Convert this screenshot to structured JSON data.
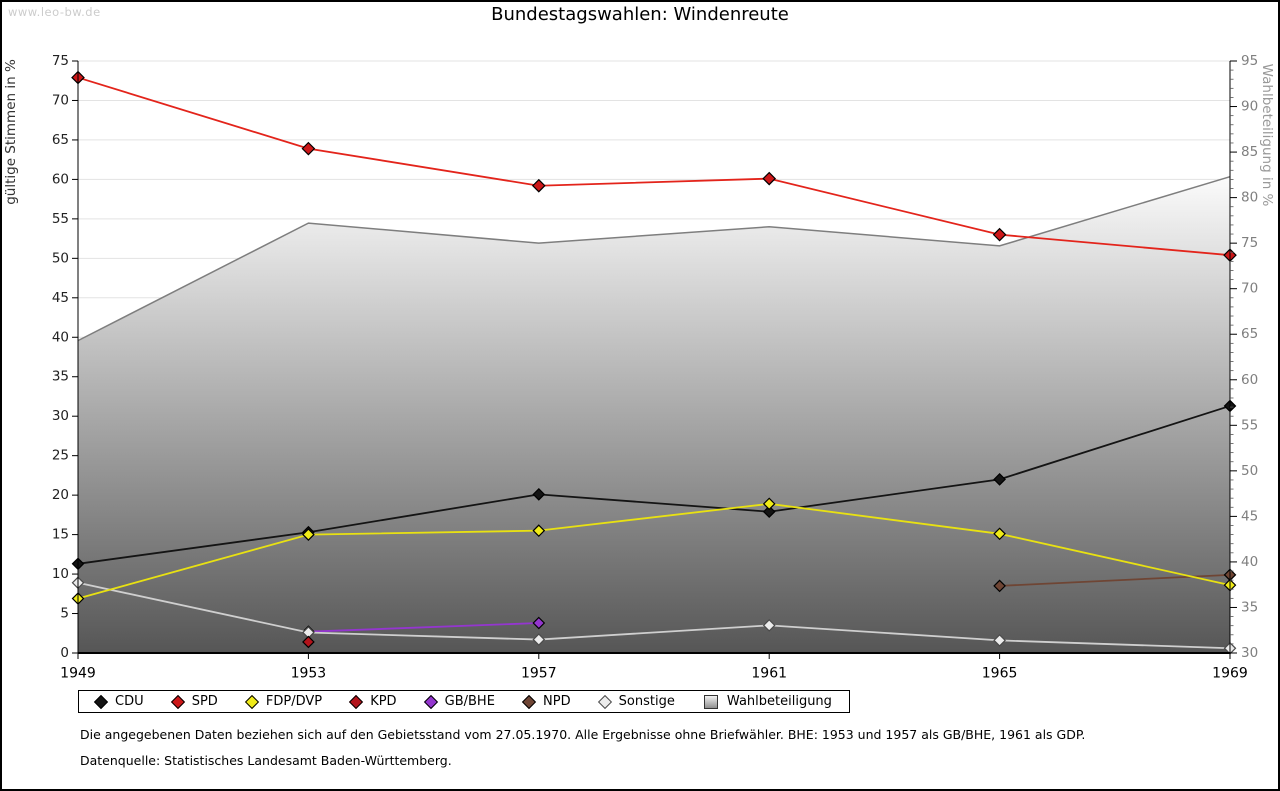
{
  "watermark": "www.leo-bw.de",
  "title": "Bundestagswahlen: Windenreute",
  "chart_data": {
    "type": "line",
    "title": "Bundestagswahlen: Windenreute",
    "x_categories": [
      "1949",
      "1953",
      "1957",
      "1961",
      "1965",
      "1969"
    ],
    "ylabel_left": "gültige Stimmen in %",
    "ylabel_right": "Wahlbeteiligung in %",
    "ylim_left": [
      0,
      75
    ],
    "ylim_right": [
      30,
      95
    ],
    "ytick_step": 5,
    "grid": true,
    "legend_position": "bottom",
    "series": [
      {
        "name": "CDU",
        "axis": "left",
        "color": "#141414",
        "marker_fill": "#141414",
        "marker_stroke": "#000000",
        "values": [
          11.3,
          15.3,
          20.1,
          17.9,
          22.0,
          31.3
        ]
      },
      {
        "name": "SPD",
        "axis": "left",
        "color": "#e3241b",
        "marker_fill": "#cd1719",
        "marker_stroke": "#000000",
        "values": [
          72.9,
          63.9,
          59.2,
          60.1,
          53.0,
          50.4
        ]
      },
      {
        "name": "FDP/DVP",
        "axis": "left",
        "color": "#e8e112",
        "marker_fill": "#f0eb18",
        "marker_stroke": "#000000",
        "values": [
          6.9,
          15.0,
          15.5,
          18.9,
          15.1,
          8.6
        ]
      },
      {
        "name": "KPD",
        "axis": "left",
        "color": "#b3131b",
        "marker_fill": "#b3131b",
        "marker_stroke": "#000000",
        "values": [
          null,
          1.4,
          null,
          null,
          null,
          null
        ]
      },
      {
        "name": "GB/BHE",
        "axis": "left",
        "color": "#9436cf",
        "marker_fill": "#9436cf",
        "marker_stroke": "#000000",
        "values": [
          null,
          2.7,
          3.8,
          null,
          null,
          null
        ]
      },
      {
        "name": "NPD",
        "axis": "left",
        "color": "#6f4534",
        "marker_fill": "#6f4534",
        "marker_stroke": "#000000",
        "values": [
          null,
          null,
          null,
          null,
          8.5,
          9.9
        ]
      },
      {
        "name": "Sonstige",
        "axis": "left",
        "color": "#cfcfcf",
        "marker_fill": "#ececec",
        "marker_stroke": "#4a4a4a",
        "values": [
          8.9,
          2.6,
          1.7,
          3.5,
          1.6,
          0.6
        ]
      }
    ],
    "area_series": {
      "name": "Wahlbeteiligung",
      "axis": "right",
      "stroke": "#7e7e7e",
      "fill_top": "#fbfbfb",
      "fill_bottom": "#565656",
      "values": [
        64.3,
        77.2,
        75.0,
        76.8,
        74.7,
        82.3
      ]
    }
  },
  "footnotes": {
    "line1": "Die angegebenen Daten beziehen sich auf den Gebietsstand vom 27.05.1970. Alle Ergebnisse ohne Briefwähler. BHE: 1953 und 1957 als GB/BHE, 1961 als GDP.",
    "line2": "Datenquelle: Statistisches Landesamt Baden-Württemberg."
  }
}
